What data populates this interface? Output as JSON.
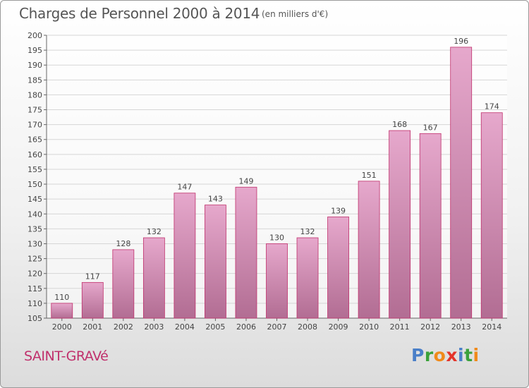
{
  "header": {
    "title": "Charges de Personnel 2000 à 2014",
    "subtitle": "(en milliers d'€)"
  },
  "footer": {
    "commune": "SAINT-GRAVé",
    "brand": "Proxiti",
    "brand_letters": [
      {
        "ch": "P",
        "color": "#4a7fc8"
      },
      {
        "ch": "r",
        "color": "#3aa13a"
      },
      {
        "ch": "o",
        "color": "#f08a1a"
      },
      {
        "ch": "x",
        "color": "#e4342a"
      },
      {
        "ch": "i",
        "color": "#4a7fc8"
      },
      {
        "ch": "t",
        "color": "#3aa13a"
      },
      {
        "ch": "i",
        "color": "#f08a1a"
      }
    ]
  },
  "chart_data": {
    "type": "bar",
    "title": "Charges de Personnel 2000 à 2014",
    "subtitle": "(en milliers d'€)",
    "categories": [
      "2000",
      "2001",
      "2002",
      "2003",
      "2004",
      "2005",
      "2006",
      "2007",
      "2008",
      "2009",
      "2010",
      "2011",
      "2012",
      "2013",
      "2014"
    ],
    "values": [
      110,
      117,
      128,
      132,
      147,
      143,
      149,
      130,
      132,
      139,
      151,
      168,
      167,
      196,
      174
    ],
    "ylim": [
      105,
      200
    ],
    "yticks": [
      105,
      110,
      115,
      120,
      125,
      130,
      135,
      140,
      145,
      150,
      155,
      160,
      165,
      170,
      175,
      180,
      185,
      190,
      195,
      200
    ],
    "grid": true,
    "bar_color_top": "#e6a8cc",
    "bar_color_bottom": "#b26d93",
    "bar_edge_color": "#c0306c"
  }
}
